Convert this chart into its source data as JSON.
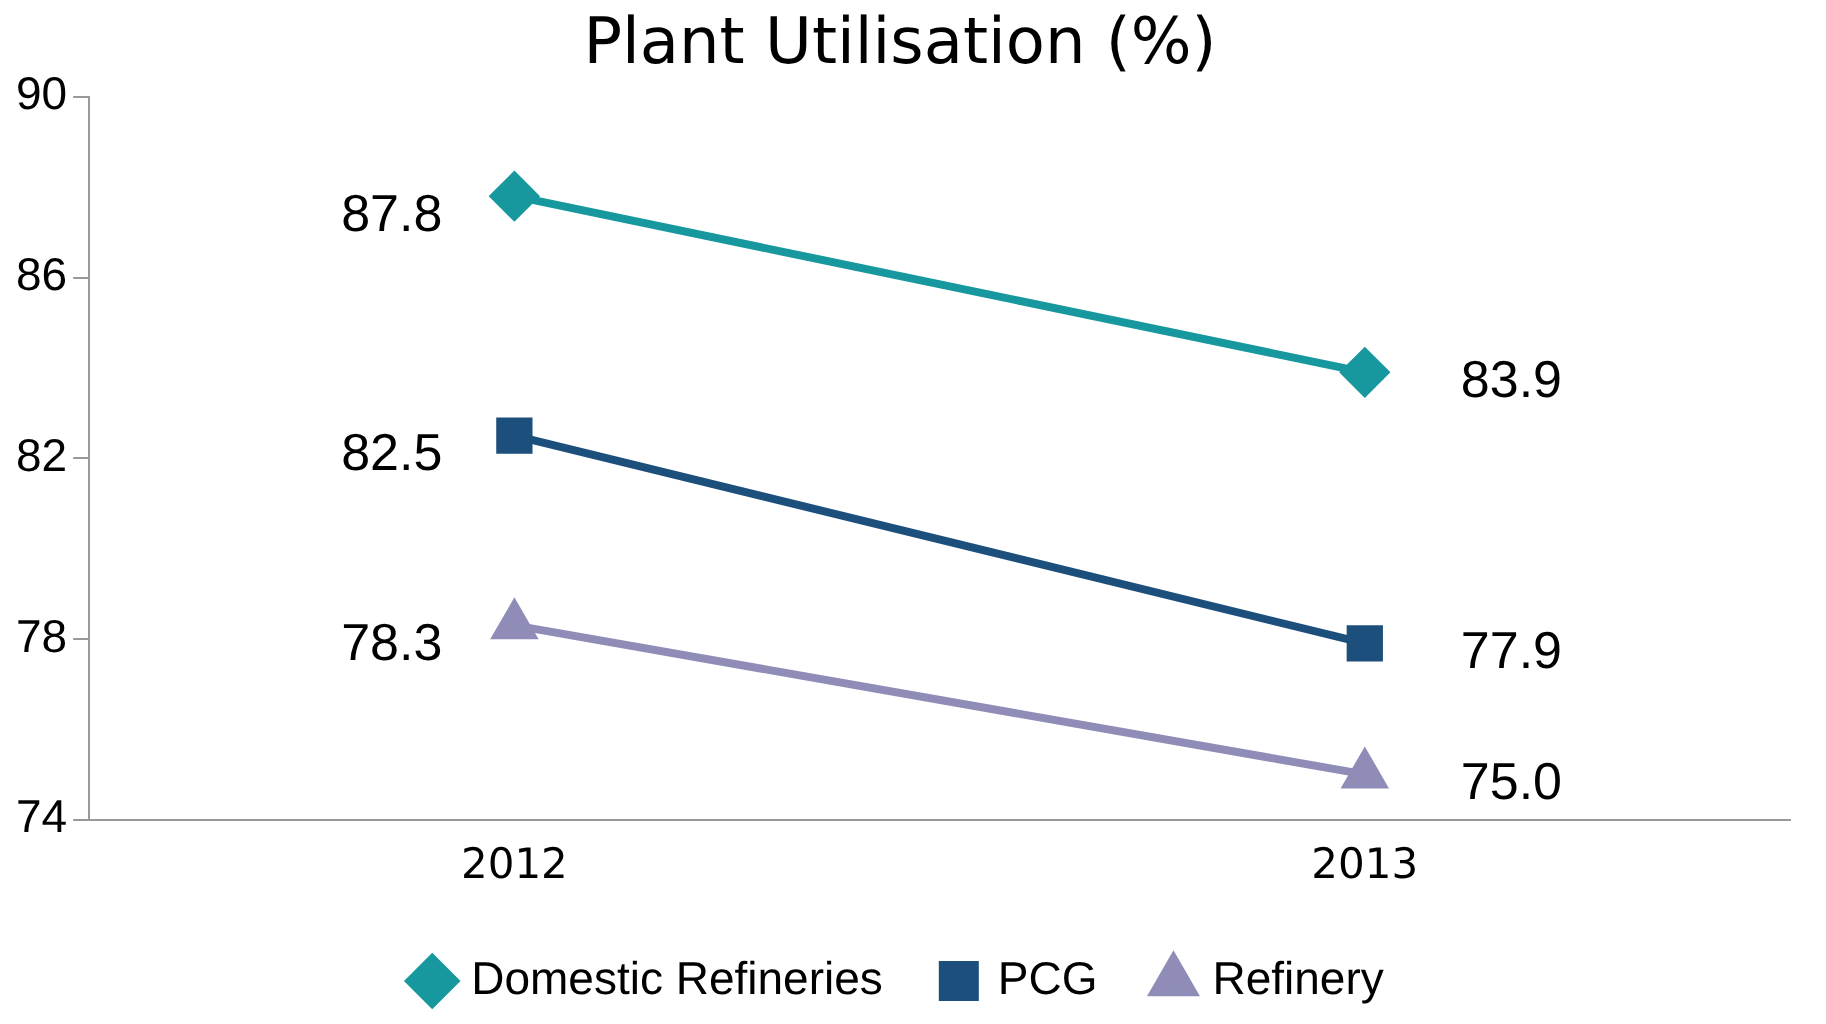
{
  "chart_data": {
    "type": "line",
    "title": "Plant Utilisation (%)",
    "categories": [
      "2012",
      "2013"
    ],
    "series": [
      {
        "name": "Domestic Refineries",
        "color": "#17989e",
        "values": [
          87.8,
          83.9
        ],
        "marker": "diamond"
      },
      {
        "name": "PCG",
        "color": "#1d4f7c",
        "values": [
          82.5,
          77.9
        ],
        "marker": "square"
      },
      {
        "name": "Refinery",
        "color": "#8f8db7",
        "values": [
          78.3,
          75.0
        ],
        "marker": "triangle"
      }
    ],
    "value_labels": [
      [
        "87.8",
        "83.9"
      ],
      [
        "82.5",
        "77.9"
      ],
      [
        "78.3",
        "75.0"
      ]
    ],
    "ylim": [
      74,
      90
    ],
    "yticks": [
      74,
      78,
      82,
      86,
      90
    ],
    "grid": false,
    "legend": "bottom",
    "line_style": "solid"
  }
}
